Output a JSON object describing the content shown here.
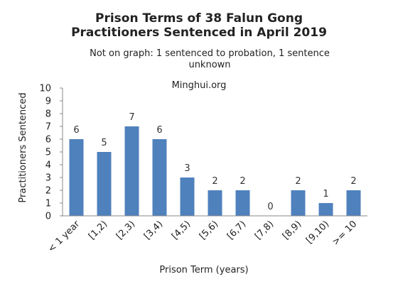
{
  "chart_data": {
    "type": "bar",
    "title_line1": "Prison Terms of 38 Falun Gong",
    "title_line2": "Practitioners Sentenced in April 2019",
    "subtitle": "Not on graph: 1 sentenced to probation, 1 sentence unknown",
    "watermark": "Minghui.org",
    "xlabel": "Prison Term (years)",
    "ylabel": "Practitioners Sentenced",
    "categories": [
      "< 1 year",
      "[1,2)",
      "[2,3)",
      "[3,4)",
      "[4,5)",
      "[5,6)",
      "[6,7)",
      "[7,8)",
      "[8,9)",
      "[9,10)",
      ">= 10"
    ],
    "values": [
      6,
      5,
      7,
      6,
      3,
      2,
      2,
      0,
      2,
      1,
      2
    ],
    "ylim": [
      0,
      10
    ],
    "yticks": [
      0,
      1,
      2,
      3,
      4,
      5,
      6,
      7,
      8,
      9,
      10
    ],
    "bar_color": "#4f81bd",
    "grid": false
  }
}
